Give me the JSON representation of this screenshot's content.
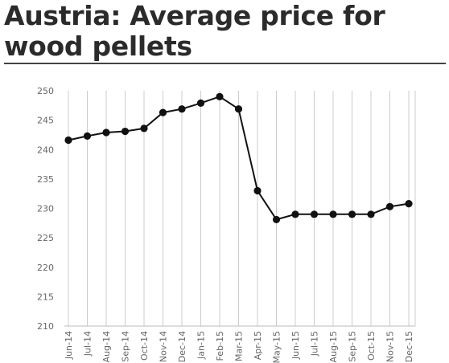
{
  "title": "Austria: Average price for wood pellets",
  "chart_data": {
    "type": "line",
    "categories": [
      "Jun-14",
      "Jul-14",
      "Aug-14",
      "Sep-14",
      "Oct-14",
      "Nov-14",
      "Dec-14",
      "Jan-15",
      "Feb-15",
      "Mar-15",
      "Apr-15",
      "May-15",
      "Jun-15",
      "Jul-15",
      "Aug-15",
      "Sep-15",
      "Oct-15",
      "Nov-15",
      "Dec-15"
    ],
    "series": [
      {
        "values": [
          241.6,
          242.3,
          242.9,
          243.1,
          243.6,
          246.3,
          246.9,
          247.9,
          249.0,
          246.9,
          233.0,
          228.1,
          229.0,
          229.0,
          229.0,
          229.0,
          229.0,
          230.3,
          230.8
        ]
      }
    ],
    "yticks": [
      210,
      215,
      220,
      225,
      230,
      235,
      240,
      245,
      250
    ],
    "ylim": [
      210,
      250
    ],
    "title": "Austria: Average price for wood pellets",
    "xlabel": "",
    "ylabel": "",
    "grid": "vertical",
    "line_color": "#111111",
    "grid_color": "#cccccc"
  }
}
